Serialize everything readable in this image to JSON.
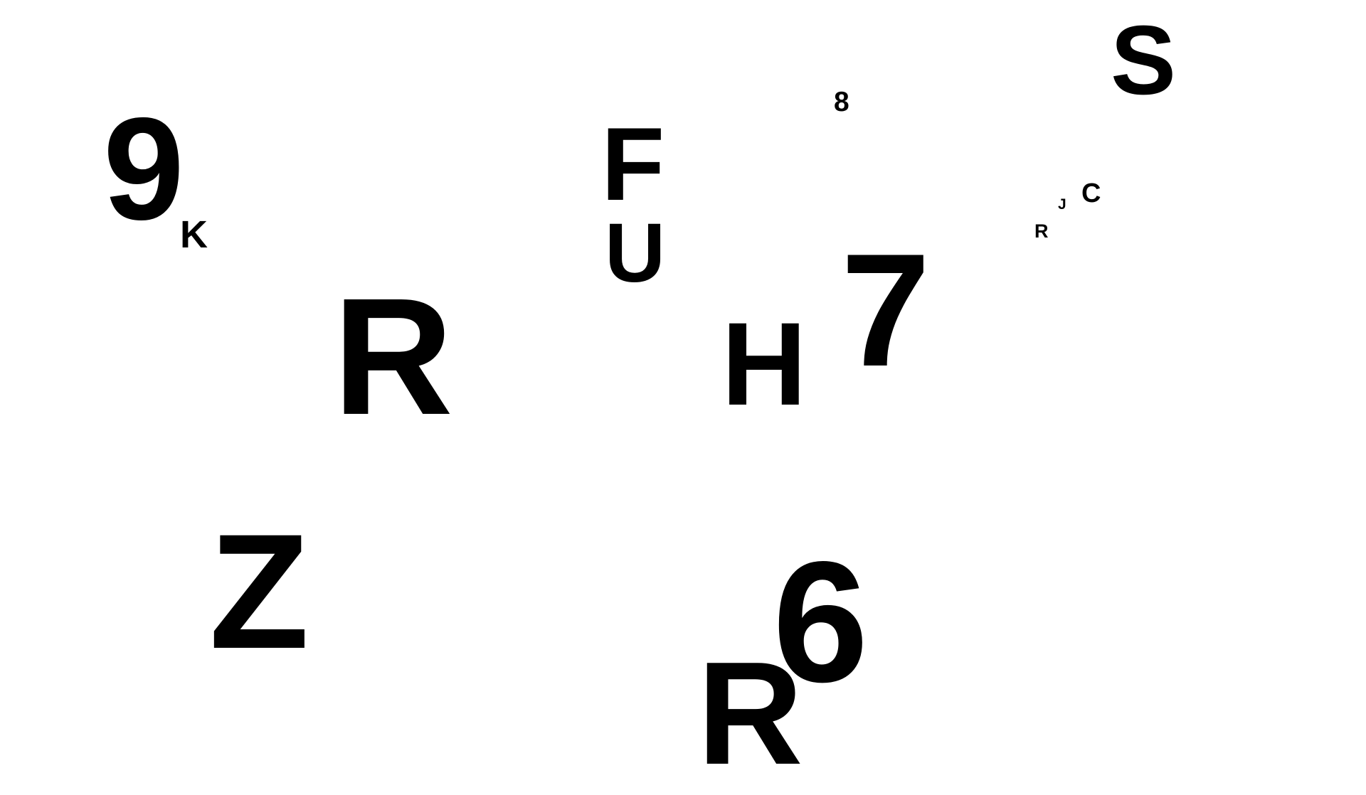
{
  "characters": {
    "nine": "9",
    "k": "K",
    "r_large": "R",
    "f": "F",
    "u": "U",
    "h": "H",
    "eight": "8",
    "seven": "7",
    "s": "S",
    "c": "C",
    "j": "J",
    "r_small": "R",
    "z": "Z",
    "six": "6",
    "r_bottom": "R"
  },
  "colors": {
    "text": "#000000",
    "background": "#ffffff"
  }
}
